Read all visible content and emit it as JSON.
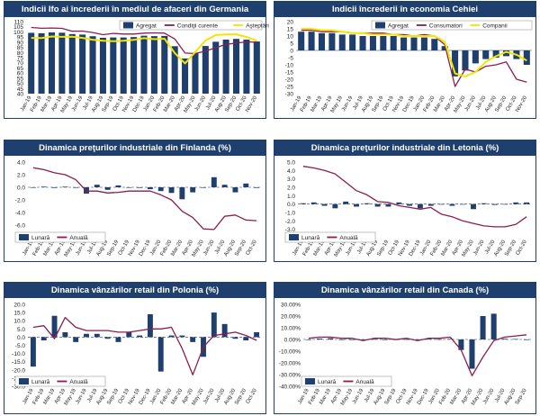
{
  "chart_data": [
    {
      "type": "bar",
      "title": "Indicii Ifo ai încrederii în mediul de afaceri din Germania",
      "categories": [
        "Jan-19",
        "Feb-19",
        "Mar-19",
        "Apr-19",
        "May-19",
        "Jun-19",
        "Jul-19",
        "Aug-19",
        "Sep-19",
        "Oct-19",
        "Nov-19",
        "Dec-19",
        "Jan-20",
        "Feb-20",
        "Mar-20",
        "Apr-20",
        "May-20",
        "Jun-20",
        "Jul-20",
        "Aug-20",
        "Sep-20",
        "Oct-20",
        "Nov-20"
      ],
      "ylim": [
        40,
        110
      ],
      "yticks": [
        40,
        45,
        50,
        55,
        60,
        65,
        70,
        75,
        80,
        85,
        90,
        95,
        100,
        105,
        110
      ],
      "legend_position": "top-right",
      "series": [
        {
          "name": "Agregat",
          "kind": "bar",
          "color": "#1f3f6e",
          "values": [
            99.1,
            98.7,
            99.5,
            99.2,
            97.9,
            97.4,
            95.8,
            94.3,
            94.6,
            94.6,
            95.0,
            96.3,
            95.9,
            96.1,
            86.1,
            74.2,
            79.7,
            86.3,
            90.4,
            92.5,
            93.2,
            92.5,
            90.7
          ]
        },
        {
          "name": "Condiţii curente",
          "kind": "line",
          "color": "#8b1e4f",
          "values": [
            104.3,
            103.5,
            103.8,
            103.4,
            100.6,
            100.8,
            99.4,
            97.3,
            98.5,
            97.9,
            97.9,
            98.8,
            99.1,
            98.8,
            93.1,
            79.5,
            78.9,
            81.4,
            84.6,
            87.9,
            89.2,
            90.3,
            90.0
          ]
        },
        {
          "name": "Aşteptări",
          "kind": "line",
          "color": "#f2e600",
          "values": [
            94.2,
            94.0,
            95.6,
            95.2,
            95.3,
            94.2,
            92.4,
            91.4,
            90.9,
            91.4,
            92.2,
            93.9,
            92.9,
            93.4,
            79.5,
            69.4,
            80.5,
            91.6,
            97.0,
            97.5,
            97.7,
            95.0,
            91.5
          ]
        }
      ]
    },
    {
      "type": "bar",
      "title": "Indicii încrederii în economia Cehiei",
      "categories": [
        "Jan-19",
        "Feb-19",
        "Mar-19",
        "Apr-19",
        "May-19",
        "Jun-19",
        "Jul-19",
        "Aug-19",
        "Sep-19",
        "Oct-19",
        "Nov-19",
        "Dec-19",
        "Jan-20",
        "Feb-20",
        "Mar-20",
        "Apr-20",
        "May-20",
        "Jun-20",
        "Jul-20",
        "Aug-20",
        "Sep-20",
        "Oct-20",
        "Nov-20"
      ],
      "ylim": [
        -30,
        20
      ],
      "yticks": [
        -30,
        -25,
        -20,
        -15,
        -10,
        -5,
        0,
        5,
        10,
        15,
        20
      ],
      "legend_position": "top-right",
      "series": [
        {
          "name": "Agregat",
          "kind": "bar",
          "color": "#1f3f6e",
          "values": [
            13,
            13,
            12,
            12,
            11,
            11,
            10,
            10,
            10,
            10,
            9,
            9,
            9,
            8,
            3,
            -18,
            -14,
            -9,
            -6,
            -5,
            -4,
            -6,
            -10
          ]
        },
        {
          "name": "Consumatori",
          "kind": "line",
          "color": "#8b1e4f",
          "values": [
            14,
            14,
            13,
            13,
            13,
            12,
            12,
            12,
            12,
            11,
            11,
            10,
            11,
            10,
            4,
            -25,
            -13,
            -15,
            -11,
            -10,
            -8,
            -20,
            -22
          ]
        },
        {
          "name": "Companii",
          "kind": "line",
          "color": "#f2e600",
          "values": [
            15,
            15,
            14,
            14,
            13,
            12,
            12,
            11,
            11,
            11,
            10,
            10,
            10,
            10,
            6,
            -16,
            -18,
            -15,
            -8,
            -4,
            -1,
            -3,
            -7
          ]
        }
      ]
    },
    {
      "type": "bar",
      "title": "Dinamica preţurilor industriale din Finlanda (%)",
      "categories": [
        "Jan-19",
        "Feb-19",
        "Mar-19",
        "Apr-19",
        "May-19",
        "Jun-19",
        "Jul-19",
        "Aug-19",
        "Sep-19",
        "Oct-19",
        "Nov-19",
        "Dec-19",
        "Jan-20",
        "Feb-20",
        "Mar-20",
        "Apr-20",
        "May-20",
        "Jun-20",
        "Jul-20",
        "Aug-20",
        "Sep-20",
        "Oct-20"
      ],
      "ylim": [
        -8,
        4
      ],
      "yticks": [
        -8.0,
        -6.0,
        -4.0,
        -2.0,
        0.0,
        2.0,
        4.0
      ],
      "tick_decimals": 1,
      "legend_position": "bottom-left",
      "series": [
        {
          "name": "Lunară",
          "kind": "bar",
          "color": "#1f3f6e",
          "values": [
            0,
            0.1,
            -0.1,
            0.1,
            0,
            -1.0,
            0.4,
            -0.4,
            0.3,
            0,
            -0.1,
            -0.3,
            -0.6,
            -0.9,
            -1.9,
            -0.8,
            0,
            1.6,
            0.4,
            -0.8,
            0.6,
            -0.1
          ]
        },
        {
          "name": "Anuală",
          "kind": "line",
          "color": "#8b1e4f",
          "values": [
            3.1,
            2.8,
            2.3,
            2.0,
            1.2,
            -0.6,
            -0.6,
            -0.9,
            -0.8,
            -0.6,
            -0.6,
            -0.6,
            -1.2,
            -2.0,
            -3.8,
            -4.8,
            -6.6,
            -6.7,
            -4.6,
            -4.4,
            -5.2,
            -5.3
          ]
        }
      ]
    },
    {
      "type": "bar",
      "title": "Dinamica preţurilor industriale din Letonia (%)",
      "categories": [
        "Jan-19",
        "Feb-19",
        "Mar-19",
        "Apr-19",
        "May-19",
        "Jun-19",
        "Jul-19",
        "Aug-19",
        "Sep-19",
        "Oct-19",
        "Nov-19",
        "Dec-19",
        "Jan-20",
        "Feb-20",
        "Mar-20",
        "Apr-20",
        "May-20",
        "Jun-20",
        "Jul-20",
        "Aug-20",
        "Sep-20",
        "Oct-20"
      ],
      "ylim": [
        -4,
        5
      ],
      "yticks": [
        -4.0,
        -3.0,
        -2.0,
        -1.0,
        0.0,
        1.0,
        2.0,
        3.0,
        4.0,
        5.0
      ],
      "tick_decimals": 1,
      "legend_position": "bottom-left",
      "series": [
        {
          "name": "Lunară",
          "kind": "bar",
          "color": "#1f3f6e",
          "values": [
            0.1,
            0.2,
            -0.2,
            -0.5,
            0.3,
            -0.3,
            0.1,
            -0.3,
            -0.3,
            0.2,
            -0.2,
            -0.5,
            -0.2,
            0,
            -0.2,
            0,
            -0.6,
            0.1,
            -0.1,
            0,
            0.2,
            0.2
          ]
        },
        {
          "name": "Anuală",
          "kind": "line",
          "color": "#8b1e4f",
          "values": [
            4.5,
            4.3,
            4.0,
            3.6,
            2.6,
            1.6,
            1.1,
            0.3,
            0.2,
            -0.2,
            -0.4,
            -0.6,
            -0.4,
            -1.2,
            -1.5,
            -2.0,
            -2.3,
            -2.6,
            -2.7,
            -2.7,
            -2.4,
            -1.5
          ]
        }
      ]
    },
    {
      "type": "bar",
      "title": "Dinamica vânzărilor retail din Polonia (%)",
      "categories": [
        "Jan-19",
        "Feb-19",
        "Mar-19",
        "Apr-19",
        "May-19",
        "Jun-19",
        "Jul-19",
        "Aug-19",
        "Sep-19",
        "Oct-19",
        "Nov-19",
        "Dec-19",
        "Jan-20",
        "Feb-20",
        "Mar-20",
        "Apr-20",
        "May-20",
        "Jun-20",
        "Jul-20",
        "Aug-20",
        "Sep-20",
        "Oct-20"
      ],
      "ylim": [
        -30,
        20
      ],
      "yticks": [
        -30.0,
        -25.0,
        -20.0,
        -15.0,
        -10.0,
        -5.0,
        0.0,
        5.0,
        10.0,
        15.0,
        20.0
      ],
      "tick_decimals": 1,
      "legend_position": "bottom-left",
      "series": [
        {
          "name": "Lunară",
          "kind": "bar",
          "color": "#1f3f6e",
          "values": [
            -18,
            -2,
            13,
            3,
            -3,
            2,
            2,
            -1,
            -3,
            3,
            1,
            14,
            -21,
            1,
            1,
            -3,
            -12,
            15,
            8,
            -1,
            -2,
            3
          ]
        },
        {
          "name": "Anuală",
          "kind": "line",
          "color": "#8b1e4f",
          "values": [
            6,
            7,
            -1,
            12,
            6,
            4,
            4,
            4,
            3,
            3,
            4,
            5,
            5,
            6,
            -7,
            -23,
            -6,
            1,
            2,
            3,
            1,
            -2
          ]
        }
      ]
    },
    {
      "type": "bar",
      "title": "Dinamica vânzărilor retail din Canada (%)",
      "categories": [
        "Jan-19",
        "Feb-19",
        "Mar-19",
        "Apr-19",
        "May-19",
        "Jun-19",
        "Jul-19",
        "Aug-19",
        "Sep-19",
        "Oct-19",
        "Nov-19",
        "Dec-19",
        "Jan-20",
        "Feb-20",
        "Mar-20",
        "Apr-20",
        "May-20",
        "Jun-20",
        "Jul-20",
        "Aug-20",
        "Sep-20"
      ],
      "ylim": [
        -40,
        30
      ],
      "yticks": [
        -40,
        -30,
        -20,
        -10,
        0,
        10,
        20,
        30
      ],
      "tick_format": "percent2",
      "legend_position": "bottom-left",
      "series": [
        {
          "name": "Lunară",
          "kind": "bar",
          "color": "#1f3f6e",
          "values": [
            0,
            0.8,
            1.1,
            -0.2,
            0,
            -0.2,
            0.3,
            0,
            -0.1,
            0.2,
            -0.6,
            0.4,
            0.2,
            0.5,
            -9,
            -25,
            20,
            22,
            0.6,
            0.4,
            -0.1
          ]
        },
        {
          "name": "Anuală",
          "kind": "line",
          "color": "#8b1e4f",
          "values": [
            1,
            2,
            2,
            1,
            1,
            -1,
            1,
            1,
            0,
            1,
            -1,
            1,
            1,
            2,
            -9,
            -31,
            -15,
            -1,
            2,
            3,
            4
          ]
        }
      ]
    }
  ]
}
